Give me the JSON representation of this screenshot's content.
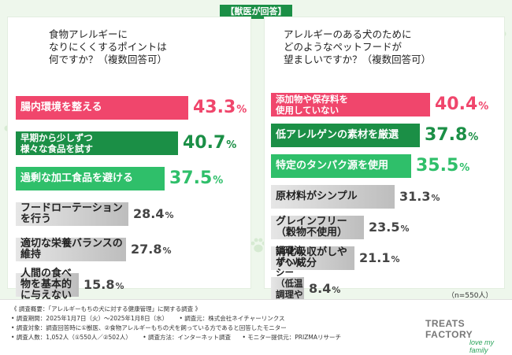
{
  "header": {
    "badge": "【獣医が回答】"
  },
  "chart_data": [
    {
      "type": "bar",
      "title": "食物アレルギーに\nなりにくくするポイントは\n何ですか？（複数回答可）",
      "categories": [
        "腸内環境を整える",
        "早期から少しずつ\n様々な食品を試す",
        "過剰な加工食品を避ける",
        "フードローテーションを行う",
        "適切な栄養バランスの維持",
        "人間の食べ物を基本的に与えない"
      ],
      "values": [
        43.3,
        40.7,
        37.5,
        28.4,
        27.8,
        15.8
      ],
      "unit": "%"
    },
    {
      "type": "bar",
      "title": "アレルギーのある犬のために\nどのようなペットフードが\n望ましいですか？（複数回答可）",
      "categories": [
        "添加物や保存料を\n使用していない",
        "低アレルゲンの素材を厳選",
        "特定のタンパク源を使用",
        "原材料がシンプル",
        "グレインフリー（穀物不使用）",
        "消化吸収がしやすい成分",
        "調理法がヘルシー\n（低温調理や乾燥加工など）"
      ],
      "values": [
        40.4,
        37.8,
        35.5,
        31.3,
        23.5,
        21.1,
        8.4
      ],
      "unit": "%"
    }
  ],
  "colors": {
    "rank1": "#f0466c",
    "rank2": "#1b8f46",
    "rank3": "#2fbf6a",
    "other": "#a7a7a7",
    "other_value": "#444444"
  },
  "sample_note": "（n=550人）",
  "footer": {
    "title": "《 調査概要：「アレルギーもちの犬に対する健康管理」に関する調査 》",
    "period": "• 調査期間：2025年1月7日（火）〜2025年1月8日（水）",
    "conductor": "• 調査元：株式会社ネイチャーリンクス",
    "target": "• 調査対象：調査回答時に①獣医、②食物アレルギーもちの犬を飼っている方であると回答したモニター",
    "count": "• 調査人数：1,052人（①550人／②502人）",
    "method": "• 調査方法：インターネット調査",
    "provider": "• モニター提供元：PRIZMAリサーチ"
  },
  "brand": {
    "name": "TREATS FACTORY",
    "tagline": "love my family"
  }
}
